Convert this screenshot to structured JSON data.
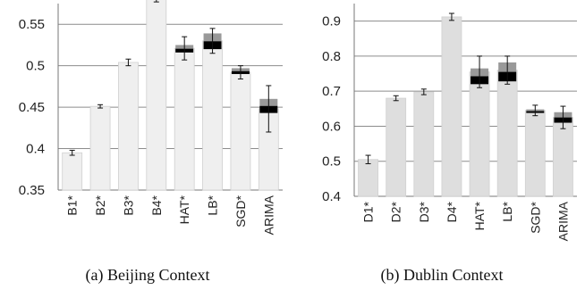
{
  "chart_data": [
    {
      "type": "bar",
      "caption": "(a)  Beijing Context",
      "categories": [
        "B1*",
        "B2*",
        "B3*",
        "B4*",
        "HAT*",
        "LB*",
        "SGD*",
        "ARIMA"
      ],
      "values": [
        0.395,
        0.451,
        0.504,
        0.58,
        0.521,
        0.53,
        0.492,
        0.448
      ],
      "error": [
        0.003,
        0.002,
        0.004,
        0.003,
        0.014,
        0.015,
        0.008,
        0.028
      ],
      "box": [
        null,
        null,
        null,
        null,
        [
          0.516,
          0.525
        ],
        [
          0.52,
          0.539
        ],
        [
          0.49,
          0.497
        ],
        [
          0.443,
          0.46
        ]
      ],
      "yticks": [
        "0.35",
        "0.4",
        "0.45",
        "0.5",
        "0.55"
      ],
      "ylim": [
        0.35,
        0.575
      ],
      "grid": true
    },
    {
      "type": "bar",
      "caption": "(b)  Dublin Context",
      "categories": [
        "D1*",
        "D2*",
        "D3*",
        "D4*",
        "HAT*",
        "LB*",
        "SGD*",
        "ARIMA"
      ],
      "values": [
        0.505,
        0.68,
        0.698,
        0.912,
        0.755,
        0.76,
        0.645,
        0.625
      ],
      "error": [
        0.012,
        0.007,
        0.008,
        0.01,
        0.045,
        0.04,
        0.015,
        0.032
      ],
      "box": [
        null,
        null,
        null,
        null,
        [
          0.72,
          0.765
        ],
        [
          0.728,
          0.782
        ],
        [
          0.638,
          0.648
        ],
        [
          0.61,
          0.64
        ]
      ],
      "yticks": [
        "0.4",
        "0.5",
        "0.6",
        "0.7",
        "0.8",
        "0.9"
      ],
      "ylim": [
        0.4,
        0.95
      ],
      "grid": true
    }
  ],
  "style": {
    "bar_color_a": "#efefef",
    "bar_color_b": "#dedede",
    "grid_color": "#8c8c8c",
    "box_grey": "#999999",
    "box_dark": "#000000"
  }
}
